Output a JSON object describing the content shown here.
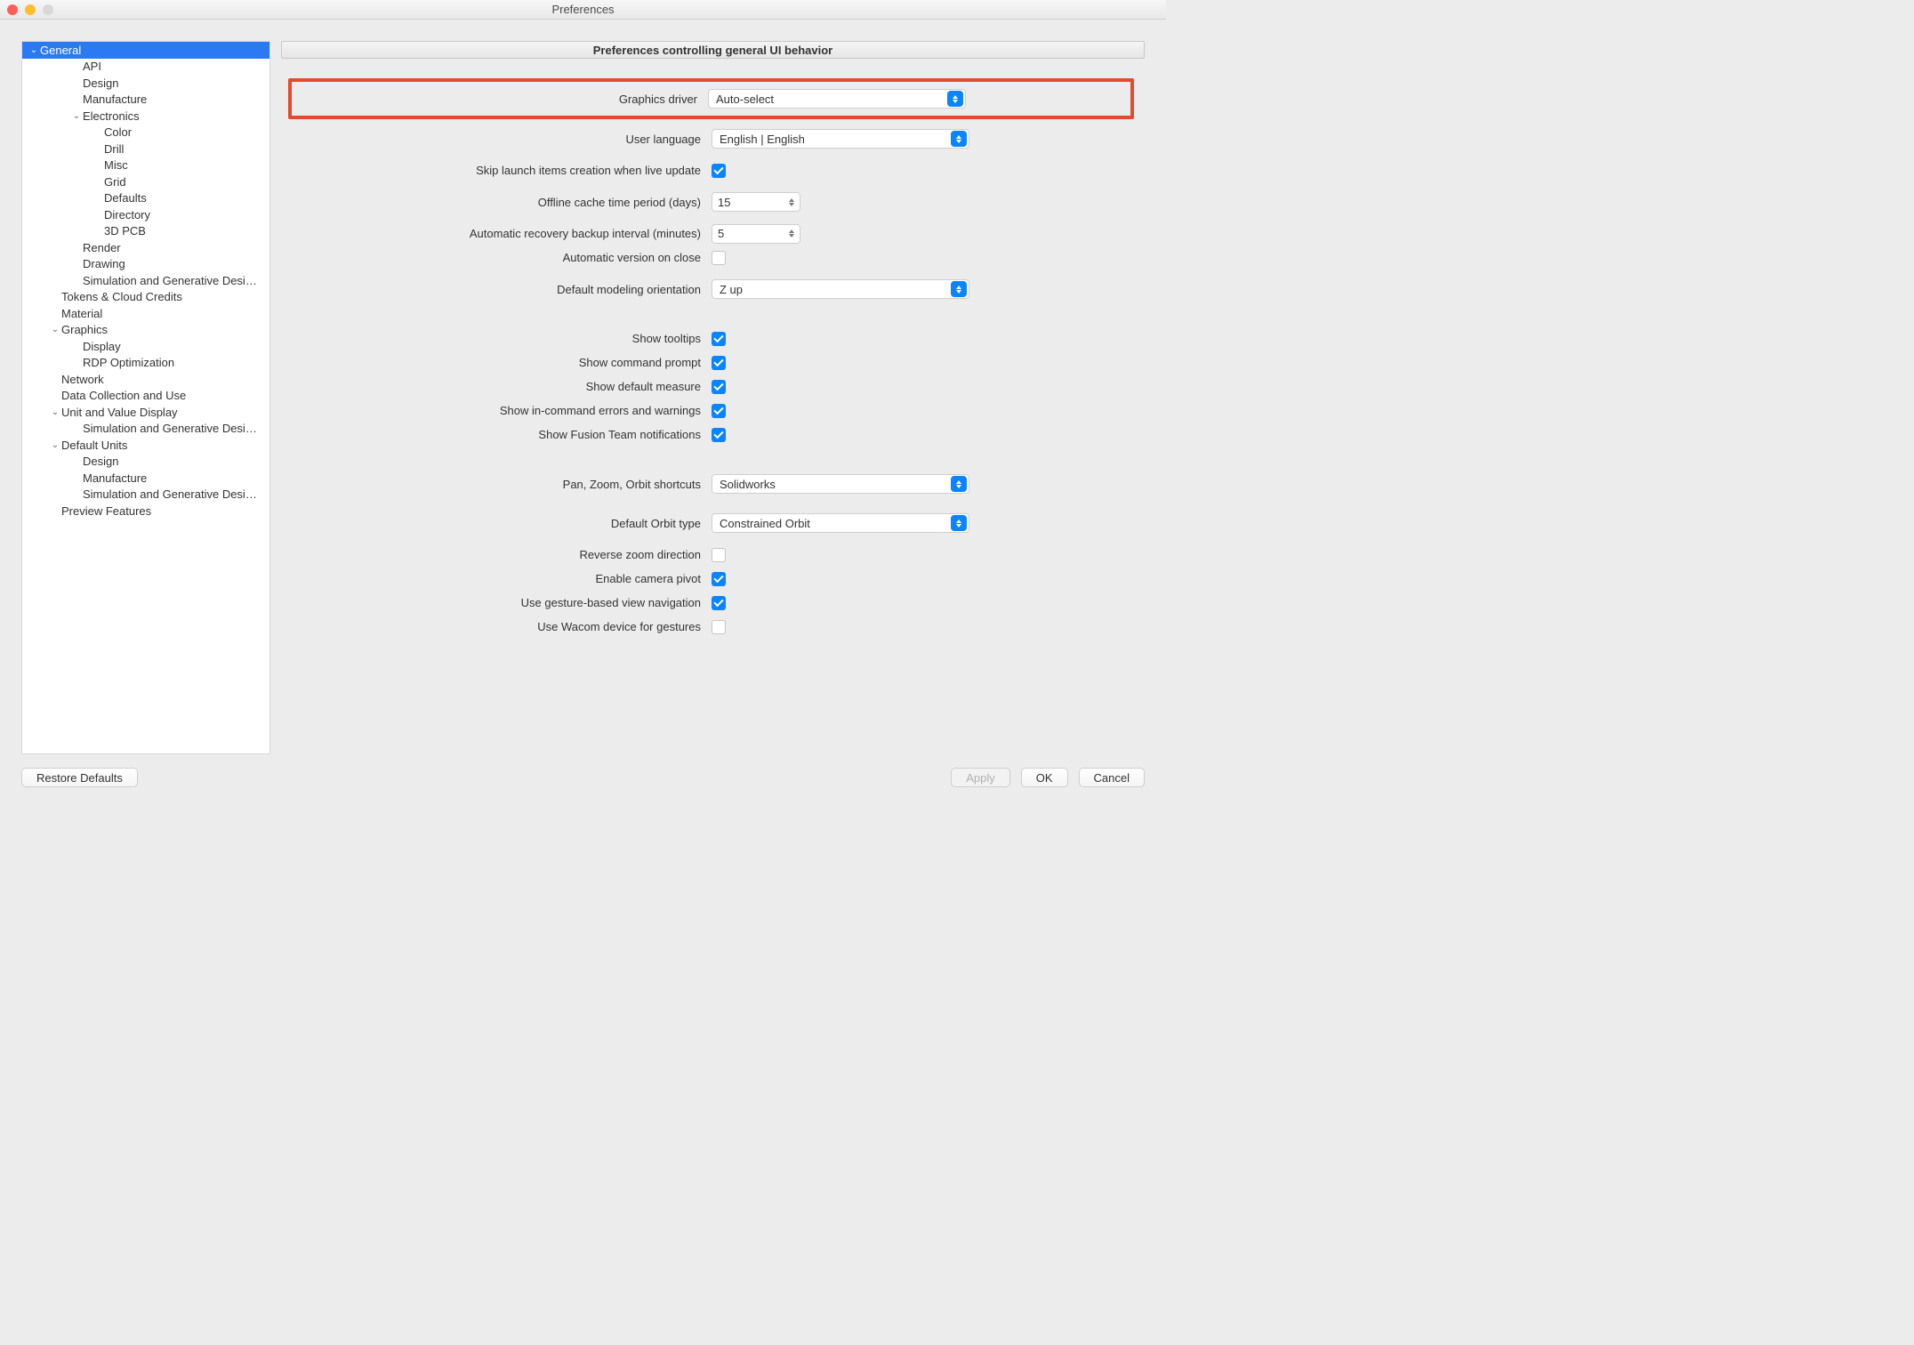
{
  "window": {
    "title": "Preferences"
  },
  "colors": {
    "accent": "#0a84ff",
    "highlight_border": "#e64a2e",
    "selection_bg": "#2a7af3"
  },
  "sidebar": {
    "items": [
      {
        "label": "General",
        "depth": 0,
        "expanded": true,
        "selected": true,
        "has_children": true
      },
      {
        "label": "API",
        "depth": 2
      },
      {
        "label": "Design",
        "depth": 2
      },
      {
        "label": "Manufacture",
        "depth": 2
      },
      {
        "label": "Electronics",
        "depth": 2,
        "expanded": true,
        "has_children": true
      },
      {
        "label": "Color",
        "depth": 3
      },
      {
        "label": "Drill",
        "depth": 3
      },
      {
        "label": "Misc",
        "depth": 3
      },
      {
        "label": "Grid",
        "depth": 3
      },
      {
        "label": "Defaults",
        "depth": 3
      },
      {
        "label": "Directory",
        "depth": 3
      },
      {
        "label": "3D PCB",
        "depth": 3
      },
      {
        "label": "Render",
        "depth": 2
      },
      {
        "label": "Drawing",
        "depth": 2
      },
      {
        "label": "Simulation and Generative Desi…",
        "depth": 2
      },
      {
        "label": "Tokens & Cloud Credits",
        "depth": 1
      },
      {
        "label": "Material",
        "depth": 1
      },
      {
        "label": "Graphics",
        "depth": 1,
        "expanded": true,
        "has_children": true
      },
      {
        "label": "Display",
        "depth": 2
      },
      {
        "label": "RDP Optimization",
        "depth": 2
      },
      {
        "label": "Network",
        "depth": 1
      },
      {
        "label": "Data Collection and Use",
        "depth": 1
      },
      {
        "label": "Unit and Value Display",
        "depth": 1,
        "expanded": true,
        "has_children": true
      },
      {
        "label": "Simulation and Generative Desi…",
        "depth": 2
      },
      {
        "label": "Default Units",
        "depth": 1,
        "expanded": true,
        "has_children": true
      },
      {
        "label": "Design",
        "depth": 2
      },
      {
        "label": "Manufacture",
        "depth": 2
      },
      {
        "label": "Simulation and Generative Desi…",
        "depth": 2
      },
      {
        "label": "Preview Features",
        "depth": 1
      }
    ]
  },
  "panel": {
    "header": "Preferences controlling general UI behavior"
  },
  "form": {
    "graphics_driver": {
      "label": "Graphics driver",
      "value": "Auto-select"
    },
    "user_language": {
      "label": "User language",
      "value": "English | English"
    },
    "skip_launch": {
      "label": "Skip launch items creation when live update",
      "checked": true
    },
    "offline_cache": {
      "label": "Offline cache time period (days)",
      "value": "15"
    },
    "recovery_interval": {
      "label": "Automatic recovery backup interval (minutes)",
      "value": "5"
    },
    "auto_version": {
      "label": "Automatic version on close",
      "checked": false
    },
    "default_orientation": {
      "label": "Default modeling orientation",
      "value": "Z up"
    },
    "show_tooltips": {
      "label": "Show tooltips",
      "checked": true
    },
    "show_cmd_prompt": {
      "label": "Show command prompt",
      "checked": true
    },
    "show_default_measure": {
      "label": "Show default measure",
      "checked": true
    },
    "show_incmd_errors": {
      "label": "Show in-command errors and warnings",
      "checked": true
    },
    "show_team_notif": {
      "label": "Show Fusion Team notifications",
      "checked": true
    },
    "pan_zoom_orbit": {
      "label": "Pan, Zoom, Orbit shortcuts",
      "value": "Solidworks"
    },
    "default_orbit": {
      "label": "Default Orbit type",
      "value": "Constrained Orbit"
    },
    "reverse_zoom": {
      "label": "Reverse zoom direction",
      "checked": false
    },
    "enable_cam_pivot": {
      "label": "Enable camera pivot",
      "checked": true
    },
    "gesture_nav": {
      "label": "Use gesture-based view navigation",
      "checked": true
    },
    "wacom_gestures": {
      "label": "Use Wacom device for gestures",
      "checked": false
    }
  },
  "buttons": {
    "restore": "Restore Defaults",
    "apply": "Apply",
    "ok": "OK",
    "cancel": "Cancel"
  }
}
